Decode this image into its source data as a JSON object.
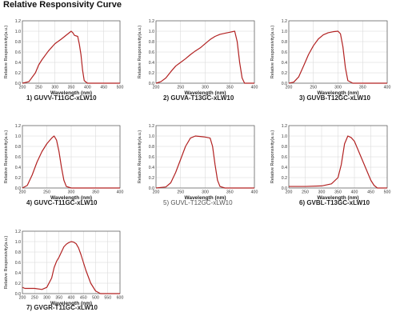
{
  "page": {
    "title": "Relative Responsivity Curve"
  },
  "chart_data": [
    {
      "type": "line",
      "caption": "1) GUVV-T11GC-xLW10",
      "xlabel": "Wavelength (nm)",
      "ylabel": "Relative Responsivity(a.u.)",
      "xlim": [
        200,
        500
      ],
      "ylim": [
        0,
        1.2
      ],
      "xticks": [
        200,
        250,
        300,
        350,
        400,
        450,
        500
      ],
      "yticks": [
        0,
        0.2,
        0.4,
        0.6,
        0.8,
        1.0,
        1.2
      ],
      "grid": true,
      "line_color": "#b22222",
      "series": [
        {
          "x": [
            200,
            220,
            240,
            250,
            260,
            280,
            300,
            320,
            340,
            350,
            355,
            360,
            370,
            375,
            380,
            385,
            390,
            400,
            420,
            450,
            500
          ],
          "y": [
            0,
            0.03,
            0.2,
            0.35,
            0.45,
            0.62,
            0.76,
            0.85,
            0.95,
            1.0,
            0.97,
            0.92,
            0.9,
            0.75,
            0.55,
            0.25,
            0.05,
            0,
            0,
            0,
            0
          ]
        }
      ]
    },
    {
      "type": "line",
      "caption": "2) GUVA-T13GC-xLW10",
      "xlabel": "Wavelength (nm)",
      "ylabel": "Relative Responsivity(a.u.)",
      "xlim": [
        200,
        400
      ],
      "ylim": [
        0,
        1.2
      ],
      "xticks": [
        200,
        250,
        300,
        350,
        400
      ],
      "yticks": [
        0,
        0.2,
        0.4,
        0.6,
        0.8,
        1.0,
        1.2
      ],
      "grid": true,
      "line_color": "#b22222",
      "series": [
        {
          "x": [
            200,
            210,
            220,
            230,
            240,
            250,
            260,
            270,
            280,
            290,
            300,
            310,
            320,
            330,
            340,
            350,
            360,
            365,
            370,
            375,
            380,
            400
          ],
          "y": [
            0,
            0.03,
            0.1,
            0.22,
            0.33,
            0.4,
            0.47,
            0.55,
            0.62,
            0.68,
            0.76,
            0.84,
            0.9,
            0.94,
            0.96,
            0.98,
            1.0,
            0.8,
            0.4,
            0.1,
            0,
            0
          ]
        }
      ]
    },
    {
      "type": "line",
      "caption": "3) GUVB-T12GC-xLW10",
      "xlabel": "Wavelength (nm)",
      "ylabel": "Relative Responsivity(a.u.)",
      "xlim": [
        200,
        400
      ],
      "ylim": [
        0,
        1.2
      ],
      "xticks": [
        200,
        250,
        300,
        350,
        400
      ],
      "yticks": [
        0,
        0.2,
        0.4,
        0.6,
        0.8,
        1.0,
        1.2
      ],
      "grid": true,
      "line_color": "#b22222",
      "series": [
        {
          "x": [
            200,
            210,
            220,
            230,
            240,
            250,
            260,
            270,
            280,
            290,
            300,
            305,
            310,
            315,
            320,
            330,
            400
          ],
          "y": [
            0,
            0.02,
            0.12,
            0.33,
            0.55,
            0.72,
            0.85,
            0.93,
            0.97,
            0.99,
            1.0,
            0.95,
            0.7,
            0.3,
            0.05,
            0,
            0
          ]
        }
      ]
    },
    {
      "type": "line",
      "caption": "4) GUVC-T11GC-xLW10",
      "xlabel": "Wavelength (nm)",
      "ylabel": "Relative Responsivity(a.u.)",
      "xlim": [
        200,
        400
      ],
      "ylim": [
        0,
        1.2
      ],
      "xticks": [
        200,
        250,
        300,
        350,
        400
      ],
      "yticks": [
        0,
        0.2,
        0.4,
        0.6,
        0.8,
        1.0,
        1.2
      ],
      "grid": true,
      "line_color": "#b22222",
      "series": [
        {
          "x": [
            200,
            210,
            220,
            230,
            240,
            250,
            260,
            265,
            270,
            275,
            280,
            285,
            290,
            300,
            400
          ],
          "y": [
            0,
            0.05,
            0.25,
            0.5,
            0.7,
            0.85,
            0.96,
            1.0,
            0.92,
            0.7,
            0.4,
            0.15,
            0.03,
            0,
            0
          ]
        }
      ]
    },
    {
      "type": "line",
      "caption": "5) GUVL-T12GC-xLW10",
      "xlabel": "Wavelength (nm)",
      "ylabel": "Relative Responsivity(a.u.)",
      "xlim": [
        200,
        400
      ],
      "ylim": [
        0,
        1.2
      ],
      "xticks": [
        200,
        250,
        300,
        350,
        400
      ],
      "yticks": [
        0,
        0.2,
        0.4,
        0.6,
        0.8,
        1.0,
        1.2
      ],
      "grid": true,
      "line_color": "#b22222",
      "series": [
        {
          "x": [
            200,
            220,
            230,
            240,
            250,
            260,
            270,
            280,
            290,
            300,
            310,
            315,
            320,
            325,
            330,
            340,
            400
          ],
          "y": [
            0,
            0.02,
            0.1,
            0.3,
            0.55,
            0.8,
            0.96,
            1.0,
            0.99,
            0.98,
            0.96,
            0.8,
            0.45,
            0.15,
            0.03,
            0,
            0
          ]
        }
      ]
    },
    {
      "type": "line",
      "caption": "6) GVBL-T13GC-xLW10",
      "xlabel": "Wavelength (nm)",
      "ylabel": "Relative Responsivity(a.u.)",
      "xlim": [
        200,
        500
      ],
      "ylim": [
        0,
        1.2
      ],
      "xticks": [
        200,
        250,
        300,
        350,
        400,
        450,
        500
      ],
      "yticks": [
        0,
        0.2,
        0.4,
        0.6,
        0.8,
        1.0,
        1.2
      ],
      "grid": true,
      "line_color": "#b22222",
      "series": [
        {
          "x": [
            200,
            250,
            300,
            330,
            350,
            360,
            370,
            380,
            390,
            400,
            410,
            420,
            430,
            440,
            450,
            460,
            470,
            500
          ],
          "y": [
            0.03,
            0.03,
            0.04,
            0.08,
            0.2,
            0.45,
            0.85,
            1.0,
            0.97,
            0.9,
            0.75,
            0.6,
            0.45,
            0.3,
            0.15,
            0.05,
            0,
            0
          ]
        }
      ]
    },
    {
      "type": "line",
      "caption": "7) GVGR-T11GC-xLW10",
      "xlabel": "Wavelength (nm)",
      "ylabel": "Relative Responsivity(a.u.)",
      "xlim": [
        200,
        600
      ],
      "ylim": [
        0,
        1.2
      ],
      "xticks": [
        200,
        250,
        300,
        350,
        400,
        450,
        500,
        550,
        600
      ],
      "yticks": [
        0,
        0.2,
        0.4,
        0.6,
        0.8,
        1.0,
        1.2
      ],
      "grid": true,
      "line_color": "#b22222",
      "series": [
        {
          "x": [
            200,
            210,
            220,
            250,
            280,
            300,
            320,
            330,
            340,
            350,
            360,
            370,
            380,
            390,
            400,
            410,
            420,
            430,
            440,
            450,
            460,
            480,
            500,
            520,
            600
          ],
          "y": [
            0.12,
            0.1,
            0.1,
            0.1,
            0.08,
            0.12,
            0.3,
            0.5,
            0.62,
            0.7,
            0.8,
            0.9,
            0.95,
            0.98,
            1.0,
            0.99,
            0.96,
            0.88,
            0.75,
            0.6,
            0.45,
            0.2,
            0.05,
            0,
            0
          ]
        }
      ]
    }
  ]
}
